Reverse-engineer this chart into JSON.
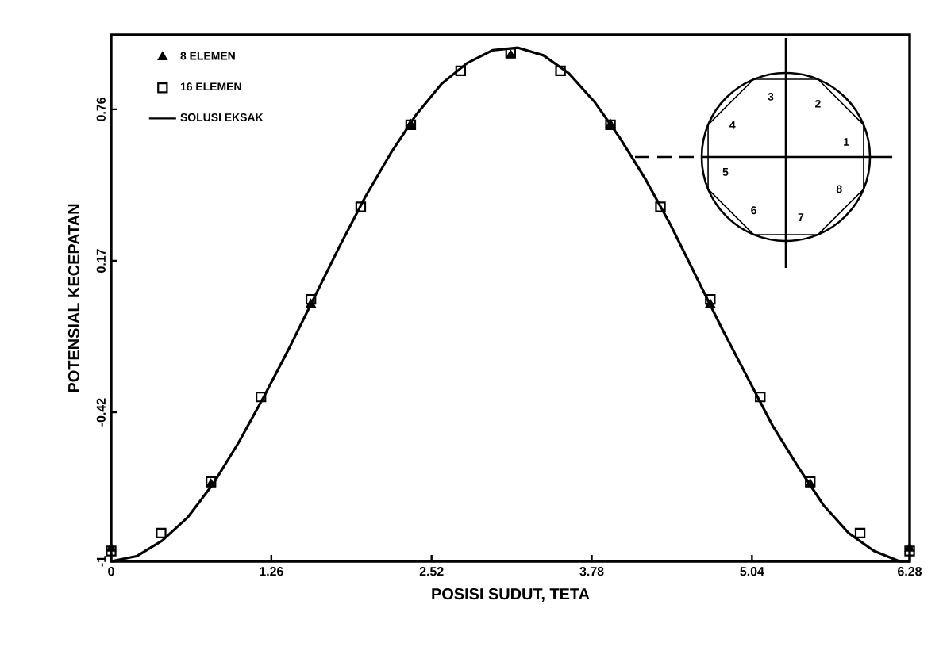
{
  "chart_data": {
    "type": "line",
    "xlabel": "POSISI SUDUT, TETA",
    "ylabel": "POTENSIAL KECEPATAN",
    "xlim": [
      0,
      6.28
    ],
    "ylim": [
      -1,
      1.05
    ],
    "xticks": [
      0,
      1.26,
      2.52,
      3.78,
      5.04,
      6.28
    ],
    "yticks": [
      -1,
      -0.42,
      0.17,
      0.76
    ],
    "legend": "top left",
    "series": [
      {
        "name": "8 ELEMEN",
        "type": "scatter",
        "marker": "triangle",
        "color": "#000000",
        "x": [
          0,
          0.785,
          1.571,
          2.356,
          3.142,
          3.927,
          4.712,
          5.498,
          6.28
        ],
        "values": [
          -0.95,
          -0.7,
          0.0,
          0.7,
          0.97,
          0.7,
          0.0,
          -0.7,
          -0.95
        ]
      },
      {
        "name": "16 ELEMEN",
        "type": "scatter",
        "marker": "square",
        "color": "#000000",
        "x": [
          0,
          0.393,
          0.785,
          1.178,
          1.571,
          1.963,
          2.356,
          2.749,
          3.142,
          3.534,
          3.927,
          4.32,
          4.712,
          5.105,
          5.498,
          5.89,
          6.28
        ],
        "values": [
          -0.96,
          -0.89,
          -0.69,
          -0.36,
          0.02,
          0.38,
          0.7,
          0.91,
          0.98,
          0.91,
          0.7,
          0.38,
          0.02,
          -0.36,
          -0.69,
          -0.89,
          -0.96
        ]
      },
      {
        "name": "SOLUSI EKSAK",
        "color": "#000000",
        "x": [
          0,
          0.2,
          0.4,
          0.6,
          0.8,
          1.0,
          1.2,
          1.4,
          1.6,
          1.8,
          2.0,
          2.2,
          2.4,
          2.6,
          2.8,
          3.0,
          3.2,
          3.4,
          3.6,
          3.8,
          4.0,
          4.2,
          4.4,
          4.6,
          4.8,
          5.0,
          5.2,
          5.4,
          5.6,
          5.8,
          6.0,
          6.2,
          6.28
        ],
        "values": [
          -1.0,
          -0.98,
          -0.92,
          -0.83,
          -0.7,
          -0.54,
          -0.36,
          -0.17,
          0.03,
          0.23,
          0.42,
          0.59,
          0.74,
          0.86,
          0.94,
          0.99,
          1.0,
          0.97,
          0.9,
          0.79,
          0.65,
          0.49,
          0.31,
          0.11,
          -0.09,
          -0.28,
          -0.47,
          -0.63,
          -0.78,
          -0.89,
          -0.96,
          -1.0,
          -1.0
        ]
      }
    ],
    "annotations": [
      "1",
      "2",
      "3",
      "4",
      "5",
      "6",
      "7",
      "8"
    ]
  }
}
